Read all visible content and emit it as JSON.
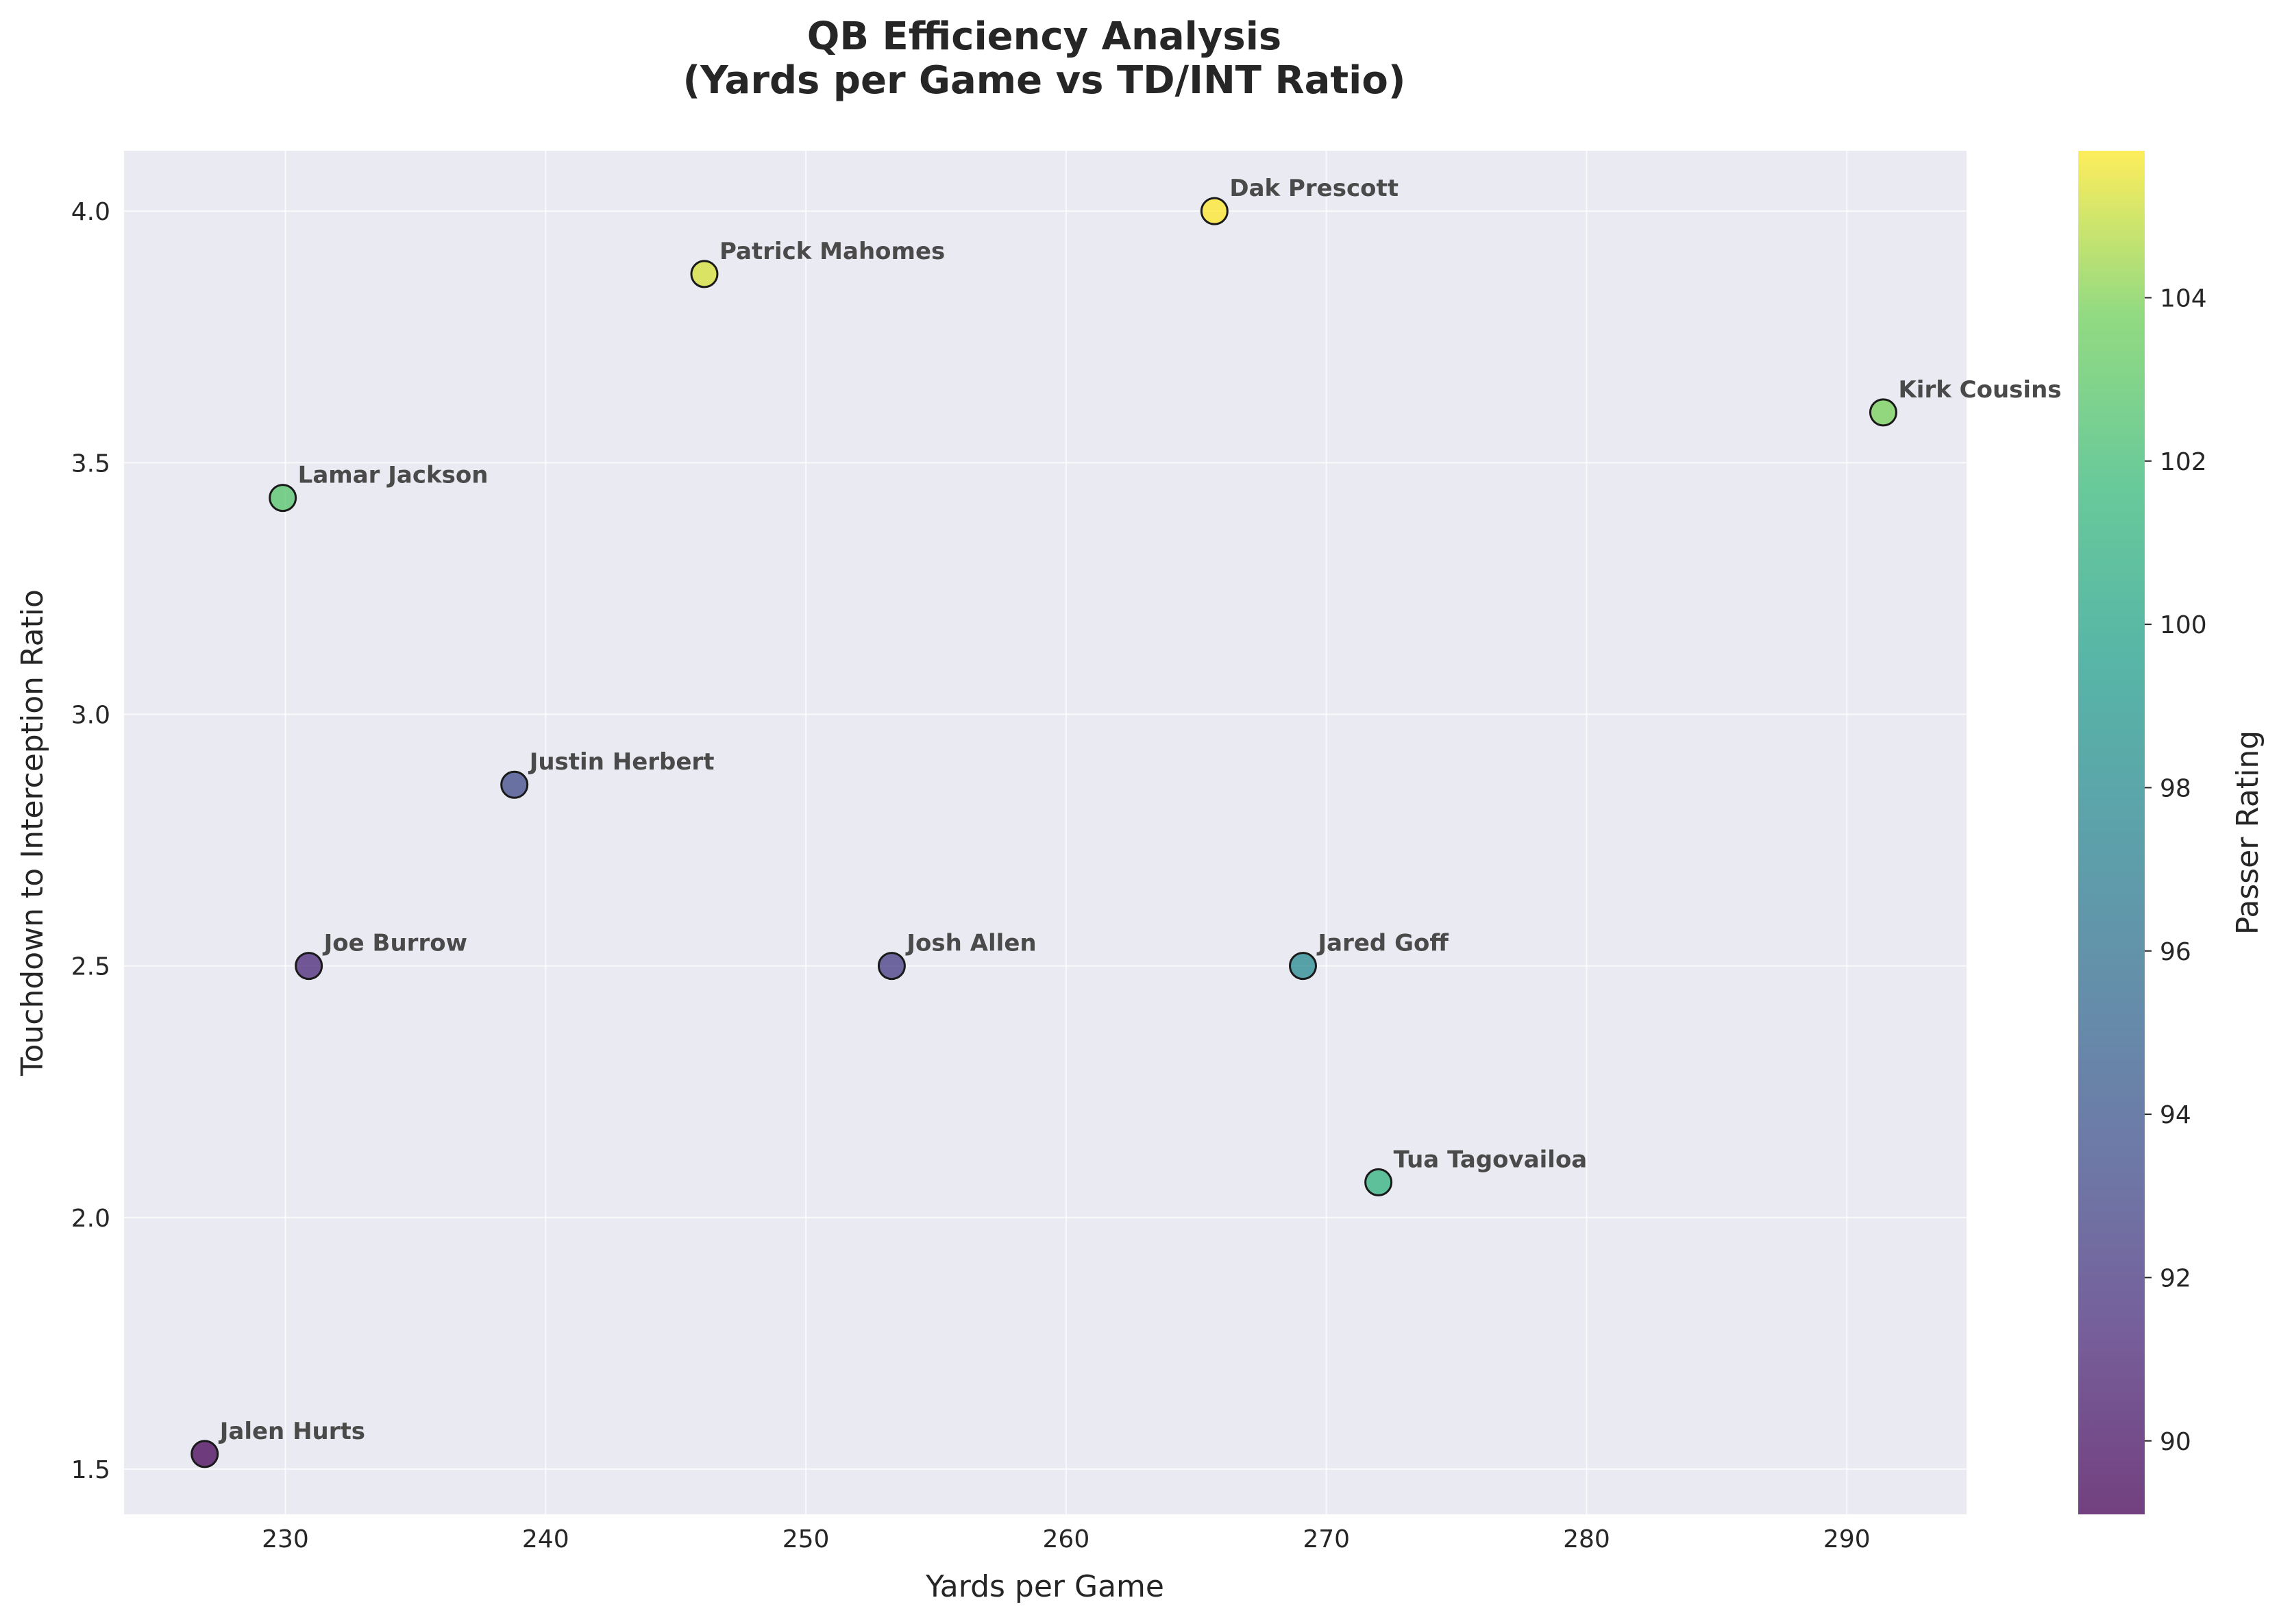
{
  "chart_data": {
    "type": "scatter",
    "title_lines": [
      "QB Efficiency Analysis",
      "(Yards per Game vs TD/INT Ratio)"
    ],
    "xlabel": "Yards per Game",
    "ylabel": "Touchdown to Interception Ratio",
    "colorbar_label": "Passer Rating",
    "xlim": [
      223.8,
      294.6
    ],
    "ylim": [
      1.41,
      4.12
    ],
    "clim": [
      89.1,
      105.8
    ],
    "xticks": [
      230,
      240,
      250,
      260,
      270,
      280,
      290
    ],
    "yticks": [
      1.5,
      2.0,
      2.5,
      3.0,
      3.5,
      4.0
    ],
    "cticks": [
      90,
      92,
      94,
      96,
      98,
      100,
      102,
      104
    ],
    "xtick_labels": [
      "230",
      "240",
      "250",
      "260",
      "270",
      "280",
      "290"
    ],
    "ytick_labels": [
      "1.5",
      "2.0",
      "2.5",
      "3.0",
      "3.5",
      "4.0"
    ],
    "ctick_labels": [
      "90",
      "92",
      "94",
      "96",
      "98",
      "100",
      "102",
      "104"
    ],
    "grid": true,
    "colormap": "viridis",
    "points": [
      {
        "name": "Dak Prescott",
        "x": 265.7,
        "y": 4.0,
        "rating": 105.8
      },
      {
        "name": "Patrick Mahomes",
        "x": 246.1,
        "y": 3.875,
        "rating": 105.2
      },
      {
        "name": "Kirk Cousins",
        "x": 291.4,
        "y": 3.6,
        "rating": 103.8
      },
      {
        "name": "Lamar Jackson",
        "x": 229.9,
        "y": 3.43,
        "rating": 102.7
      },
      {
        "name": "Justin Herbert",
        "x": 238.8,
        "y": 2.86,
        "rating": 93.2
      },
      {
        "name": "Joe Burrow",
        "x": 230.9,
        "y": 2.5,
        "rating": 91.0
      },
      {
        "name": "Josh Allen",
        "x": 253.3,
        "y": 2.5,
        "rating": 92.2
      },
      {
        "name": "Jared Goff",
        "x": 269.1,
        "y": 2.5,
        "rating": 97.9
      },
      {
        "name": "Tua Tagovailoa",
        "x": 272.0,
        "y": 2.07,
        "rating": 101.1
      },
      {
        "name": "Jalen Hurts",
        "x": 226.9,
        "y": 1.53,
        "rating": 89.1
      }
    ]
  }
}
